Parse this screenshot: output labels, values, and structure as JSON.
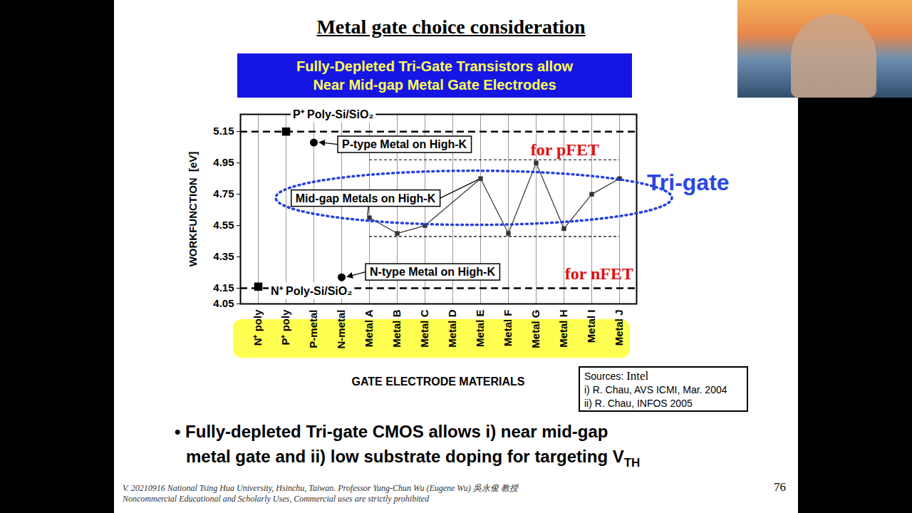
{
  "slide": {
    "title": "Metal gate choice consideration",
    "banner": [
      "Fully-Depleted Tri-Gate Transistors allow",
      "Near Mid-gap Metal Gate Electrodes"
    ],
    "bullet": {
      "lines": [
        "• Fully-depleted Tri-gate CMOS allows i) near mid-gap",
        "metal gate and ii) low substrate doping for targeting V"
      ],
      "subscript": "TH"
    },
    "sources": {
      "heading": "Sources:",
      "name": "Intel",
      "lines": [
        "i) R. Chau, AVS ICMI, Mar. 2004",
        "ii) R. Chau, INFOS 2005"
      ]
    },
    "footer": [
      "V. 20210916 National Tsing Hua University, Hsinchu, Taiwan. Professor Yung-Chun Wu (Eugene Wu) 吳永俊 教授",
      "Noncommercial Educational and Scholarly Uses, Commercial uses are strictly prohibited"
    ],
    "page": 76
  },
  "chart_data": {
    "type": "scatter",
    "x_label": "GATE ELECTRODE MATERIALS",
    "y_label": "WORKFUNCTION  [eV]",
    "categories": [
      "N⁺ poly",
      "P⁺ poly",
      "P-metal",
      "N-metal",
      "Metal A",
      "Metal B",
      "Metal C",
      "Metal D",
      "Metal E",
      "Metal F",
      "Metal G",
      "Metal H",
      "Metal I",
      "Metal J"
    ],
    "ylim": [
      4.05,
      5.26
    ],
    "yticks": [
      4.05,
      4.15,
      4.35,
      4.55,
      4.75,
      4.95,
      5.15
    ],
    "grid": true,
    "reference_lines": [
      5.15,
      4.15
    ],
    "midgap_band": [
      4.48,
      4.97
    ],
    "annotations": [
      "for pFET",
      "for nFET",
      "Tri-gate"
    ],
    "series": [
      {
        "name": "P⁺ Poly-Si/SiO₂",
        "color": "#000000",
        "marker": "square",
        "values": [
          null,
          5.15,
          null,
          null,
          null,
          null,
          null,
          null,
          null,
          null,
          null,
          null,
          null,
          null
        ]
      },
      {
        "name": "N⁺ Poly-Si/SiO₂",
        "color": "#000000",
        "marker": "square",
        "values": [
          4.16,
          null,
          null,
          null,
          null,
          null,
          null,
          null,
          null,
          null,
          null,
          null,
          null,
          null
        ]
      },
      {
        "name": "P-type Metal on High-K",
        "color": "#000000",
        "marker": "circle",
        "values": [
          null,
          null,
          5.08,
          null,
          null,
          null,
          null,
          null,
          null,
          null,
          null,
          null,
          null,
          null
        ]
      },
      {
        "name": "N-type Metal on High-K",
        "color": "#000000",
        "marker": "circle",
        "values": [
          null,
          null,
          null,
          4.22,
          null,
          null,
          null,
          null,
          null,
          null,
          null,
          null,
          null,
          null
        ]
      },
      {
        "name": "Mid-gap Metals on High-K",
        "color": "#333333",
        "marker": "square",
        "line_style": "solid",
        "values": [
          null,
          null,
          null,
          null,
          4.6,
          4.5,
          4.55,
          null,
          4.85,
          4.5,
          4.95,
          4.53,
          4.75,
          4.85
        ]
      }
    ]
  }
}
